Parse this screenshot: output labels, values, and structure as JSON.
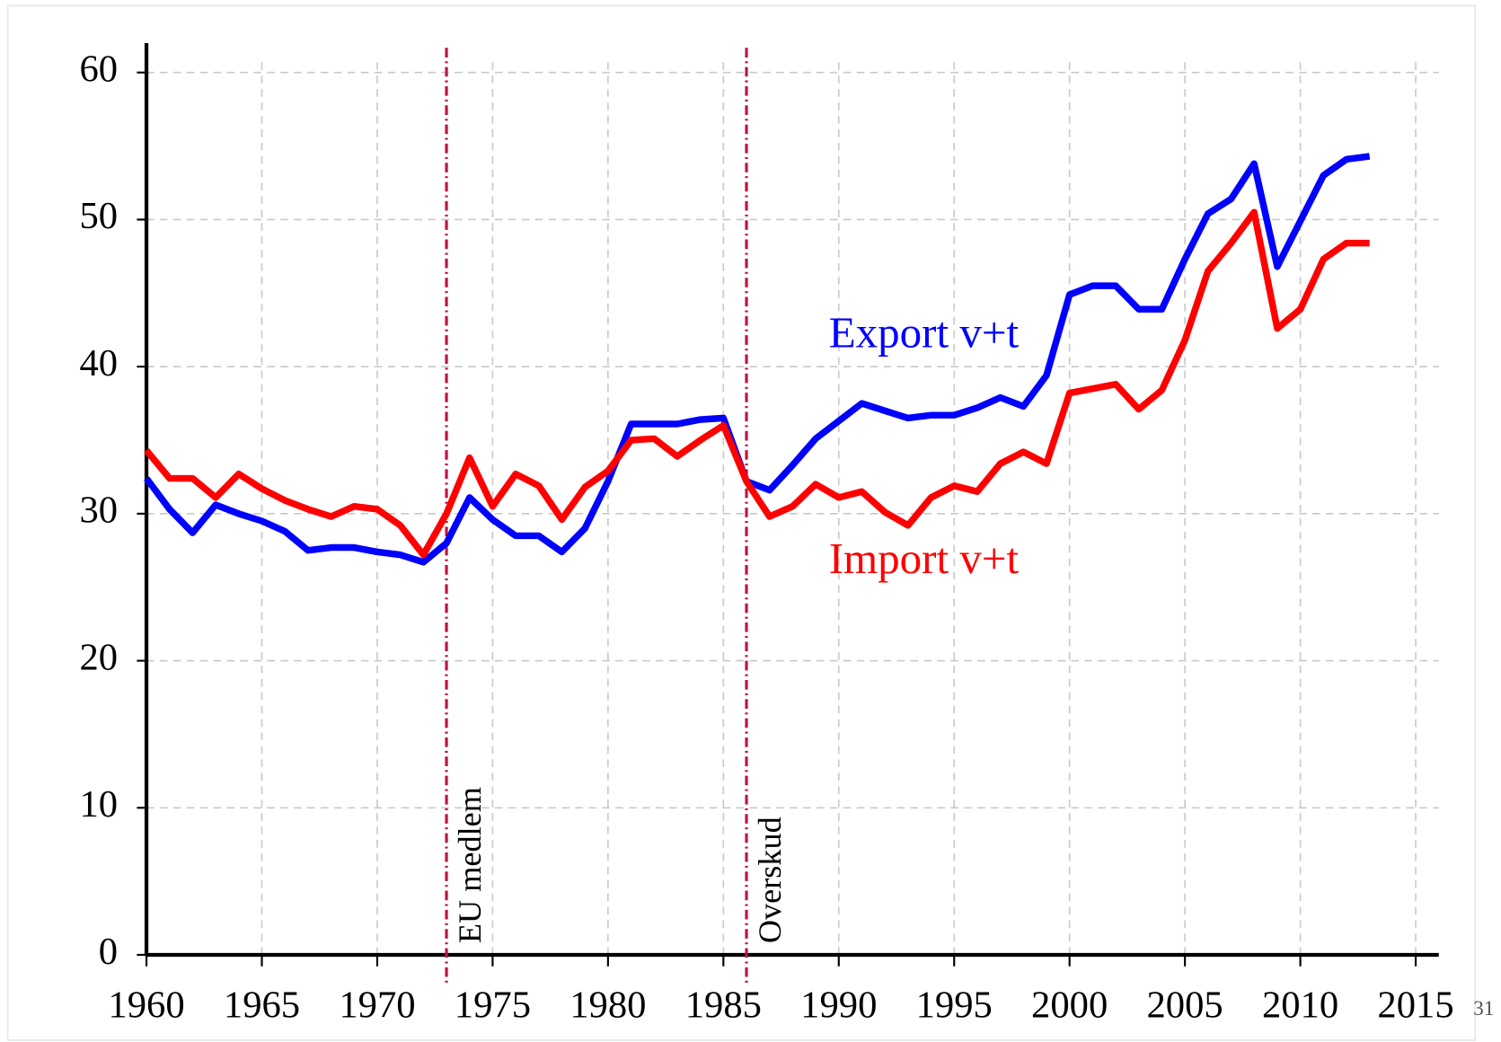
{
  "chart_data": {
    "type": "line",
    "x": [
      1960,
      1961,
      1962,
      1963,
      1964,
      1965,
      1966,
      1967,
      1968,
      1969,
      1970,
      1971,
      1972,
      1973,
      1974,
      1975,
      1976,
      1977,
      1978,
      1979,
      1980,
      1981,
      1982,
      1983,
      1984,
      1985,
      1986,
      1987,
      1988,
      1989,
      1990,
      1991,
      1992,
      1993,
      1994,
      1995,
      1996,
      1997,
      1998,
      1999,
      2000,
      2001,
      2002,
      2003,
      2004,
      2005,
      2006,
      2007,
      2008,
      2009,
      2010,
      2011,
      2012,
      2013
    ],
    "series": [
      {
        "name": "Export v+t",
        "color": "#0000ff",
        "values": [
          32.4,
          30.3,
          28.7,
          30.6,
          30.0,
          29.5,
          28.8,
          27.5,
          27.7,
          27.7,
          27.4,
          27.2,
          26.7,
          28.0,
          31.1,
          29.6,
          28.5,
          28.5,
          27.4,
          29.0,
          32.2,
          36.1,
          36.1,
          36.1,
          36.4,
          36.5,
          32.2,
          31.6,
          33.3,
          35.1,
          36.3,
          37.5,
          37.0,
          36.5,
          36.7,
          36.7,
          37.2,
          37.9,
          37.3,
          39.4,
          44.9,
          45.5,
          45.5,
          43.9,
          43.9,
          47.3,
          50.4,
          51.4,
          53.8,
          46.8,
          49.9,
          53.0,
          54.1,
          54.3
        ]
      },
      {
        "name": "Import v+t",
        "color": "#ff0000",
        "values": [
          34.3,
          32.4,
          32.4,
          31.1,
          32.7,
          31.7,
          30.9,
          30.3,
          29.8,
          30.5,
          30.3,
          29.2,
          27.2,
          30.0,
          33.8,
          30.5,
          32.7,
          31.9,
          29.6,
          31.8,
          32.9,
          35.0,
          35.1,
          33.9,
          35.0,
          36.0,
          32.2,
          29.8,
          30.5,
          32.0,
          31.1,
          31.5,
          30.1,
          29.2,
          31.1,
          31.9,
          31.5,
          33.4,
          34.2,
          33.4,
          38.2,
          38.5,
          38.8,
          37.1,
          38.4,
          41.8,
          46.5,
          48.4,
          50.5,
          42.6,
          43.9,
          47.3,
          48.4,
          48.4
        ]
      }
    ],
    "vlines": [
      {
        "x": 1973,
        "label": "EU medlem",
        "color": "#c0143c"
      },
      {
        "x": 1986,
        "label": "Overskud",
        "color": "#c0143c"
      }
    ],
    "xlim": [
      1960,
      2016
    ],
    "xticks": [
      1960,
      1965,
      1970,
      1975,
      1980,
      1985,
      1990,
      1995,
      2000,
      2005,
      2010,
      2015
    ],
    "ylim": [
      0,
      62
    ],
    "yticks": [
      0,
      10,
      20,
      30,
      40,
      50,
      60
    ],
    "grid": true
  },
  "page_number": "31"
}
